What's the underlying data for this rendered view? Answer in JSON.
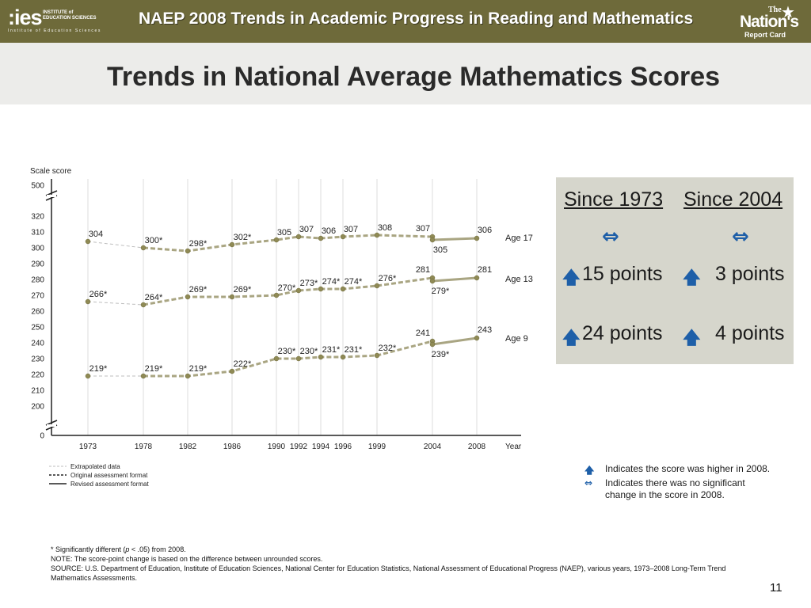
{
  "header": {
    "ies_mark": ":ies",
    "ies_name": "INSTITUTE of EDUCATION SCIENCES",
    "ies_tagline": "Institute of Education Sciences",
    "title": "NAEP 2008 Trends in Academic Progress in Reading and Mathematics",
    "nrc_the": "The",
    "nrc_nations": "Nation's",
    "nrc_report": "Report Card"
  },
  "slide_title": "Trends in National Average Mathematics Scores",
  "chart_data": {
    "type": "line",
    "ylabel": "Scale score",
    "xlabel": "Year",
    "y_ticks_main": [
      200,
      210,
      220,
      230,
      240,
      250,
      260,
      270,
      280,
      290,
      300,
      310,
      320
    ],
    "y_tick_top": 500,
    "y_tick_bottom": 0,
    "ylim": [
      200,
      320
    ],
    "x_years": [
      1973,
      1978,
      1982,
      1986,
      1990,
      1992,
      1994,
      1996,
      1999,
      2004,
      2008
    ],
    "grid": "vertical lines at assessment years",
    "series": [
      {
        "name": "Age 17",
        "points": [
          {
            "year": 1973,
            "value": 304,
            "label": "304",
            "format": "extrapolated"
          },
          {
            "year": 1978,
            "value": 300,
            "label": "300*",
            "format": "original"
          },
          {
            "year": 1982,
            "value": 298,
            "label": "298*",
            "format": "original"
          },
          {
            "year": 1986,
            "value": 302,
            "label": "302*",
            "format": "original"
          },
          {
            "year": 1990,
            "value": 305,
            "label": "305",
            "format": "original"
          },
          {
            "year": 1992,
            "value": 307,
            "label": "307",
            "format": "original"
          },
          {
            "year": 1994,
            "value": 306,
            "label": "306",
            "format": "original"
          },
          {
            "year": 1996,
            "value": 307,
            "label": "307",
            "format": "original"
          },
          {
            "year": 1999,
            "value": 308,
            "label": "308",
            "format": "original"
          },
          {
            "year": 2004,
            "value": 307,
            "label": "307",
            "format": "original"
          },
          {
            "year": 2004,
            "value": 305,
            "label": "305",
            "format": "revised"
          },
          {
            "year": 2008,
            "value": 306,
            "label": "306",
            "format": "revised"
          }
        ]
      },
      {
        "name": "Age 13",
        "points": [
          {
            "year": 1973,
            "value": 266,
            "label": "266*",
            "format": "extrapolated"
          },
          {
            "year": 1978,
            "value": 264,
            "label": "264*",
            "format": "original"
          },
          {
            "year": 1982,
            "value": 269,
            "label": "269*",
            "format": "original"
          },
          {
            "year": 1986,
            "value": 269,
            "label": "269*",
            "format": "original"
          },
          {
            "year": 1990,
            "value": 270,
            "label": "270*",
            "format": "original"
          },
          {
            "year": 1992,
            "value": 273,
            "label": "273*",
            "format": "original"
          },
          {
            "year": 1994,
            "value": 274,
            "label": "274*",
            "format": "original"
          },
          {
            "year": 1996,
            "value": 274,
            "label": "274*",
            "format": "original"
          },
          {
            "year": 1999,
            "value": 276,
            "label": "276*",
            "format": "original"
          },
          {
            "year": 2004,
            "value": 281,
            "label": "281",
            "format": "original"
          },
          {
            "year": 2004,
            "value": 279,
            "label": "279*",
            "format": "revised"
          },
          {
            "year": 2008,
            "value": 281,
            "label": "281",
            "format": "revised"
          }
        ]
      },
      {
        "name": "Age 9",
        "points": [
          {
            "year": 1973,
            "value": 219,
            "label": "219*",
            "format": "extrapolated"
          },
          {
            "year": 1978,
            "value": 219,
            "label": "219*",
            "format": "original"
          },
          {
            "year": 1982,
            "value": 219,
            "label": "219*",
            "format": "original"
          },
          {
            "year": 1986,
            "value": 222,
            "label": "222*",
            "format": "original"
          },
          {
            "year": 1990,
            "value": 230,
            "label": "230*",
            "format": "original"
          },
          {
            "year": 1992,
            "value": 230,
            "label": "230*",
            "format": "original"
          },
          {
            "year": 1994,
            "value": 231,
            "label": "231*",
            "format": "original"
          },
          {
            "year": 1996,
            "value": 231,
            "label": "231*",
            "format": "original"
          },
          {
            "year": 1999,
            "value": 232,
            "label": "232*",
            "format": "original"
          },
          {
            "year": 2004,
            "value": 241,
            "label": "241",
            "format": "original"
          },
          {
            "year": 2004,
            "value": 239,
            "label": "239*",
            "format": "revised"
          },
          {
            "year": 2008,
            "value": 243,
            "label": "243",
            "format": "revised"
          }
        ]
      }
    ],
    "legend": [
      {
        "style": "extrapolated",
        "label": "Extrapolated data"
      },
      {
        "style": "original",
        "label": "Original assessment format"
      },
      {
        "style": "revised",
        "label": "Revised assessment format"
      }
    ],
    "colors": {
      "line": "#a9a582",
      "point": "#8f8a55",
      "extrapolated": "#bdbdbd",
      "grid": "#dcdcdc",
      "axis": "#222222"
    }
  },
  "summary": {
    "since_1973": "Since 1973",
    "since_2004": "Since 2004",
    "age17_1973_icon": "no-change-icon",
    "age17_2004_icon": "no-change-icon",
    "age13_1973": "15 points",
    "age13_2004": "3 points",
    "age9_1973": "24 points",
    "age9_2004": "4 points",
    "no_change_glyph": "⇔",
    "up_glyph": "🡅"
  },
  "key": {
    "higher": "Indicates the score was higher in 2008.",
    "no_change_line1": "Indicates there was no significant",
    "no_change_line2": "change in the score in 2008."
  },
  "footnotes": {
    "sig_prefix": "* Significantly different (",
    "sig_p": "p",
    "sig_suffix": " < .05) from 2008.",
    "note": "NOTE: The score-point change is based on the difference between unrounded scores.",
    "source": "SOURCE: U.S. Department of Education, Institute of Education Sciences, National Center for Education Statistics, National Assessment of Educational Progress (NAEP), various years, 1973–2008 Long-Term Trend Mathematics Assessments."
  },
  "page_number": "11"
}
